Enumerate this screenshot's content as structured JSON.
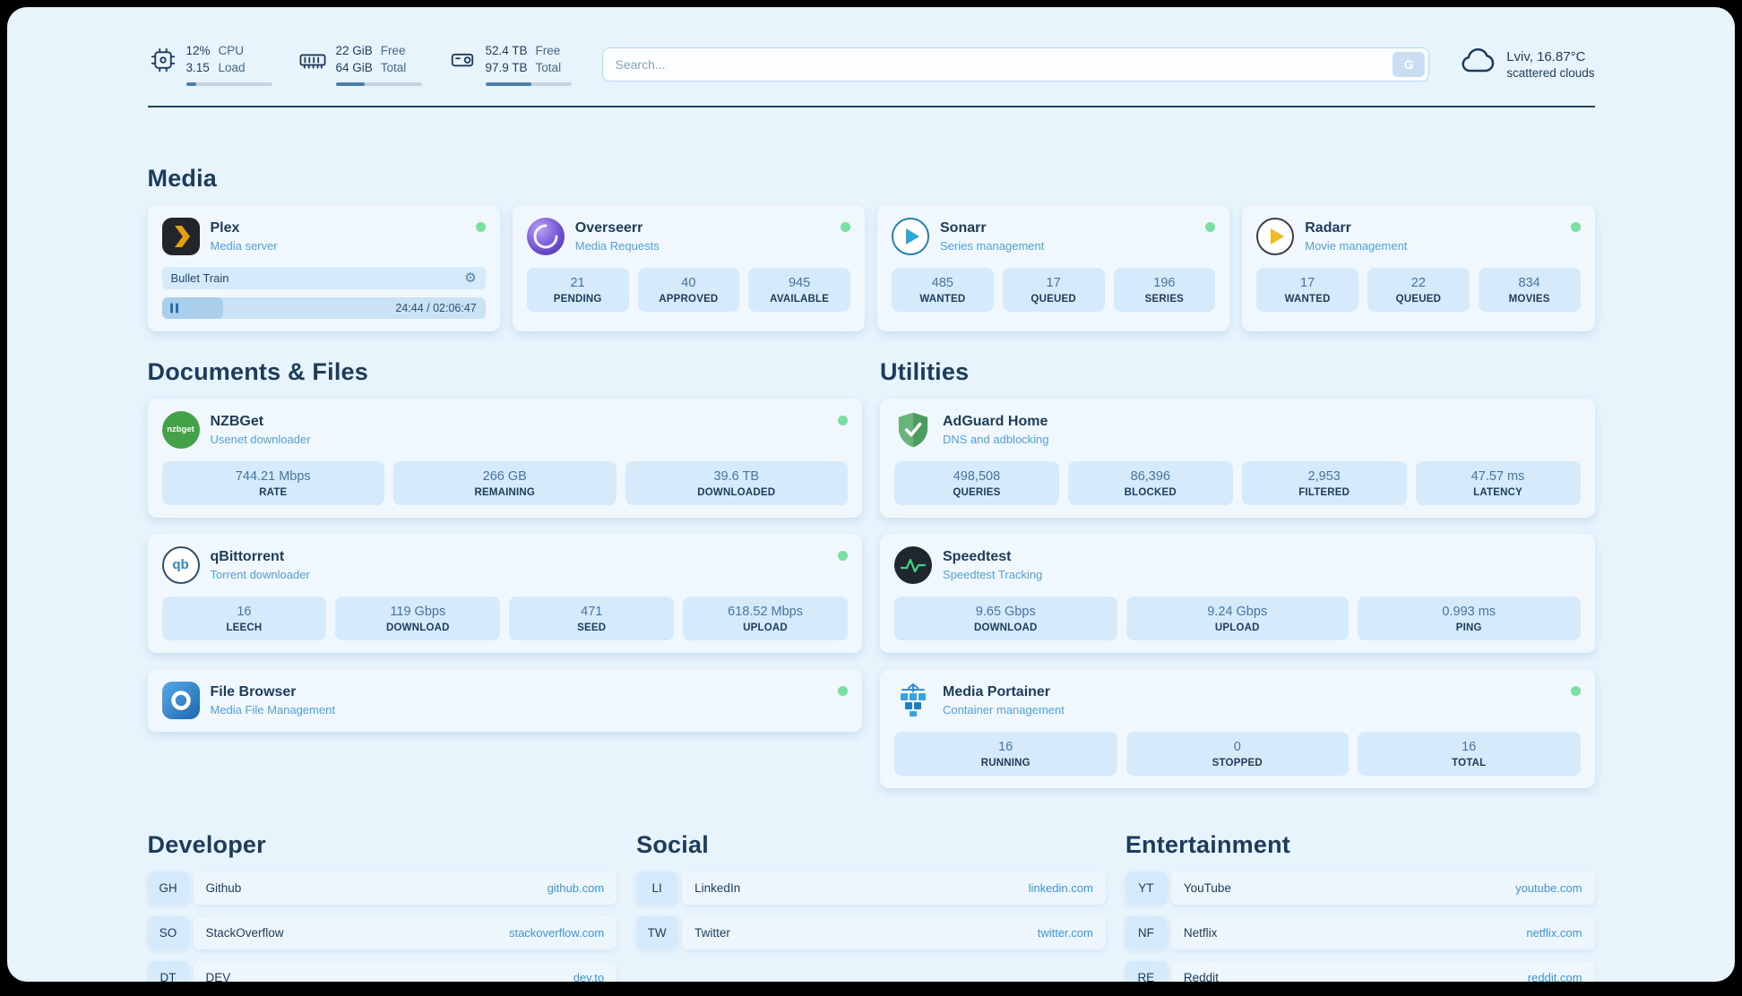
{
  "colors": {
    "background": "#e8f4fc",
    "card": "#f1f8fd",
    "tile": "#d5eafb",
    "text_primary": "#1d3b5a",
    "text_secondary": "#529fdf",
    "link": "#3f94d6",
    "status_online": "#7bdf9f",
    "progress_fill": "#4e7ea8"
  },
  "topbar": {
    "system": [
      {
        "icon": "cpu-icon",
        "line1": "12%",
        "line2": "3.15",
        "label1": "CPU",
        "label2": "Load",
        "progress_pct": 12
      },
      {
        "icon": "ram-icon",
        "line1": "22 GiB",
        "line2": "64 GiB",
        "label1": "Free",
        "label2": "Total",
        "progress_pct": 34
      },
      {
        "icon": "disk-icon",
        "line1": "52.4 TB",
        "line2": "97.9 TB",
        "label1": "Free",
        "label2": "Total",
        "progress_pct": 54
      }
    ],
    "search": {
      "placeholder": "Search...",
      "engine_button": "G"
    },
    "weather": {
      "location": "Lviv, 16.87°C",
      "condition": "scattered clouds"
    }
  },
  "media": {
    "heading": "Media",
    "plex": {
      "name": "Plex",
      "subtitle": "Media server",
      "status": "online",
      "now_playing": {
        "title": "Bullet Train",
        "time": "24:44 / 02:06:47",
        "progress_pct": 19
      }
    },
    "overseerr": {
      "name": "Overseerr",
      "subtitle": "Media Requests",
      "status": "online",
      "stats": [
        {
          "value": "21",
          "label": "PENDING"
        },
        {
          "value": "40",
          "label": "APPROVED"
        },
        {
          "value": "945",
          "label": "AVAILABLE"
        }
      ]
    },
    "sonarr": {
      "name": "Sonarr",
      "subtitle": "Series management",
      "status": "online",
      "stats": [
        {
          "value": "485",
          "label": "WANTED"
        },
        {
          "value": "17",
          "label": "QUEUED"
        },
        {
          "value": "196",
          "label": "SERIES"
        }
      ]
    },
    "radarr": {
      "name": "Radarr",
      "subtitle": "Movie management",
      "status": "online",
      "stats": [
        {
          "value": "17",
          "label": "WANTED"
        },
        {
          "value": "22",
          "label": "QUEUED"
        },
        {
          "value": "834",
          "label": "MOVIES"
        }
      ]
    }
  },
  "documents": {
    "heading": "Documents & Files",
    "nzbget": {
      "name": "NZBGet",
      "subtitle": "Usenet downloader",
      "status": "online",
      "icon_label": "nzbget",
      "stats": [
        {
          "value": "744.21 Mbps",
          "label": "RATE"
        },
        {
          "value": "266 GB",
          "label": "REMAINING"
        },
        {
          "value": "39.6 TB",
          "label": "DOWNLOADED"
        }
      ]
    },
    "qbittorrent": {
      "name": "qBittorrent",
      "subtitle": "Torrent downloader",
      "status": "online",
      "icon_label": "qb",
      "stats": [
        {
          "value": "16",
          "label": "LEECH"
        },
        {
          "value": "119 Gbps",
          "label": "DOWNLOAD"
        },
        {
          "value": "471",
          "label": "SEED"
        },
        {
          "value": "618.52 Mbps",
          "label": "UPLOAD"
        }
      ]
    },
    "filebrowser": {
      "name": "File Browser",
      "subtitle": "Media File Management",
      "status": "online"
    }
  },
  "utilities": {
    "heading": "Utilities",
    "adguard": {
      "name": "AdGuard Home",
      "subtitle": "DNS and adblocking",
      "stats": [
        {
          "value": "498,508",
          "label": "QUERIES"
        },
        {
          "value": "86,396",
          "label": "BLOCKED"
        },
        {
          "value": "2,953",
          "label": "FILTERED"
        },
        {
          "value": "47.57 ms",
          "label": "LATENCY"
        }
      ]
    },
    "speedtest": {
      "name": "Speedtest",
      "subtitle": "Speedtest Tracking",
      "stats": [
        {
          "value": "9.65 Gbps",
          "label": "DOWNLOAD"
        },
        {
          "value": "9.24 Gbps",
          "label": "UPLOAD"
        },
        {
          "value": "0.993 ms",
          "label": "PING"
        }
      ]
    },
    "portainer": {
      "name": "Media Portainer",
      "subtitle": "Container management",
      "status": "online",
      "stats": [
        {
          "value": "16",
          "label": "RUNNING"
        },
        {
          "value": "0",
          "label": "STOPPED"
        },
        {
          "value": "16",
          "label": "TOTAL"
        }
      ]
    }
  },
  "bookmarks": [
    {
      "heading": "Developer",
      "items": [
        {
          "abbr": "GH",
          "name": "Github",
          "url": "github.com"
        },
        {
          "abbr": "SO",
          "name": "StackOverflow",
          "url": "stackoverflow.com"
        },
        {
          "abbr": "DT",
          "name": "DEV",
          "url": "dev.to"
        }
      ]
    },
    {
      "heading": "Social",
      "items": [
        {
          "abbr": "LI",
          "name": "LinkedIn",
          "url": "linkedin.com"
        },
        {
          "abbr": "TW",
          "name": "Twitter",
          "url": "twitter.com"
        }
      ]
    },
    {
      "heading": "Entertainment",
      "items": [
        {
          "abbr": "YT",
          "name": "YouTube",
          "url": "youtube.com"
        },
        {
          "abbr": "NF",
          "name": "Netflix",
          "url": "netflix.com"
        },
        {
          "abbr": "RE",
          "name": "Reddit",
          "url": "reddit.com"
        }
      ]
    }
  ]
}
